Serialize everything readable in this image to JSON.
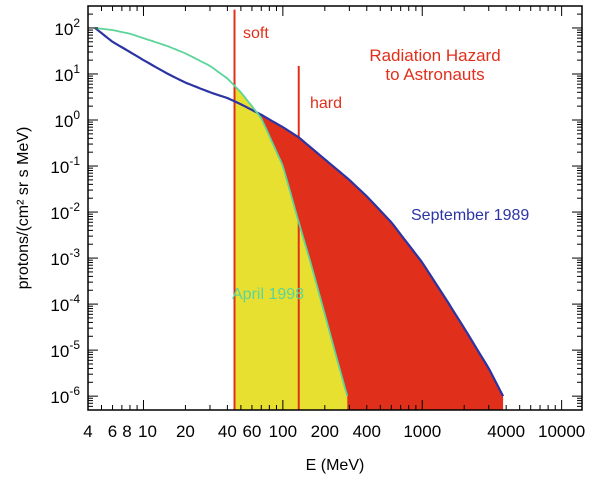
{
  "chart_data": {
    "type": "line",
    "title": "",
    "xlabel": "E (MeV)",
    "ylabel": "protons/(cm² sr s MeV)",
    "x_scale": "log",
    "y_scale": "log",
    "xlim": [
      4,
      14000
    ],
    "ylim": [
      5e-07,
      300
    ],
    "grid": false,
    "x_ticks": [
      {
        "value": 4,
        "label": "4"
      },
      {
        "value": 6,
        "label": "6"
      },
      {
        "value": 8,
        "label": "8"
      },
      {
        "value": 10,
        "label": "10"
      },
      {
        "value": 20,
        "label": "20"
      },
      {
        "value": 40,
        "label": "40"
      },
      {
        "value": 60,
        "label": "60"
      },
      {
        "value": 100,
        "label": "100"
      },
      {
        "value": 200,
        "label": "200"
      },
      {
        "value": 400,
        "label": "400"
      },
      {
        "value": 1000,
        "label": "1000"
      },
      {
        "value": 4000,
        "label": "4000"
      },
      {
        "value": 10000,
        "label": "10000"
      }
    ],
    "y_ticks": [
      {
        "value": 100,
        "base": "10",
        "exp": "2"
      },
      {
        "value": 10,
        "base": "10",
        "exp": "1"
      },
      {
        "value": 1,
        "base": "10",
        "exp": "0"
      },
      {
        "value": 0.1,
        "base": "10",
        "exp": "-1"
      },
      {
        "value": 0.01,
        "base": "10",
        "exp": "-2"
      },
      {
        "value": 0.001,
        "base": "10",
        "exp": "-3"
      },
      {
        "value": 0.0001,
        "base": "10",
        "exp": "-4"
      },
      {
        "value": 1e-05,
        "base": "10",
        "exp": "-5"
      },
      {
        "value": 1e-06,
        "base": "10",
        "exp": "-6"
      }
    ],
    "series": [
      {
        "name": "September 1989",
        "color": "#2c34a4",
        "x": [
          4.5,
          6,
          8,
          10,
          15,
          20,
          30,
          40,
          50,
          70,
          100,
          130,
          200,
          300,
          400,
          600,
          1000,
          1500,
          2000,
          3000,
          3800
        ],
        "y": [
          100,
          50,
          30,
          20,
          10,
          6.5,
          4,
          3,
          2.2,
          1.3,
          0.7,
          0.42,
          0.14,
          0.05,
          0.022,
          0.006,
          0.0008,
          0.00012,
          3e-05,
          4e-06,
          1e-06
        ]
      },
      {
        "name": "April 1998",
        "color": "#5cd49a",
        "x": [
          4.5,
          6,
          8,
          10,
          15,
          20,
          30,
          40,
          50,
          60,
          70,
          100,
          130,
          160,
          200,
          250,
          290
        ],
        "y": [
          100,
          90,
          75,
          60,
          40,
          28,
          15,
          8,
          4,
          2,
          1.1,
          0.1,
          0.006,
          0.0007,
          6e-05,
          5e-06,
          1e-06
        ]
      }
    ],
    "shaded_regions": [
      {
        "name": "soft",
        "color": "#e8e030",
        "x_from": 45,
        "x_to": 300
      },
      {
        "name": "hard",
        "color": "#e0301c",
        "x_from": 130,
        "x_to": 3800
      }
    ],
    "vertical_lines": [
      {
        "label": "soft",
        "x": 45,
        "y_top": 250,
        "color": "#e0301c"
      },
      {
        "label": "hard",
        "x": 130,
        "y_top": 15,
        "color": "#e0301c"
      }
    ],
    "annotations": [
      {
        "text": "Radiation Hazard",
        "color": "#e0301c"
      },
      {
        "text": "to Astronauts",
        "color": "#e0301c"
      },
      {
        "text": "September 1989",
        "color": "#2c34a4"
      },
      {
        "text": "April 1998",
        "color": "#5cd49a"
      }
    ]
  }
}
